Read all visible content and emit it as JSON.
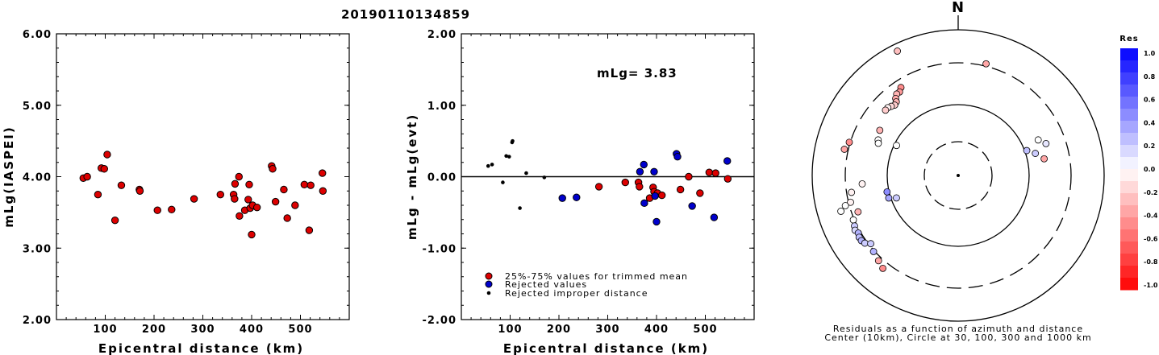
{
  "title": "20190110134859",
  "chart_data": [
    {
      "type": "scatter",
      "xlabel": "Epicentral distance (km)",
      "ylabel": "mLg(IASPEI)",
      "xlim": [
        0,
        600
      ],
      "ylim": [
        2,
        6
      ],
      "xticks": [
        "100",
        "200",
        "300",
        "400",
        "500"
      ],
      "yticks": [
        "2.00",
        "3.00",
        "4.00",
        "5.00",
        "6.00"
      ],
      "points": [
        [
          55,
          3.98
        ],
        [
          63,
          4.0
        ],
        [
          85,
          3.75
        ],
        [
          92,
          4.12
        ],
        [
          98,
          4.11
        ],
        [
          104,
          4.31
        ],
        [
          120,
          3.39
        ],
        [
          133,
          3.88
        ],
        [
          170,
          3.82
        ],
        [
          171,
          3.8
        ],
        [
          207,
          3.53
        ],
        [
          236,
          3.54
        ],
        [
          282,
          3.69
        ],
        [
          336,
          3.75
        ],
        [
          363,
          3.75
        ],
        [
          365,
          3.69
        ],
        [
          366,
          3.9
        ],
        [
          374,
          4.0
        ],
        [
          375,
          3.45
        ],
        [
          386,
          3.53
        ],
        [
          393,
          3.68
        ],
        [
          395,
          3.89
        ],
        [
          397,
          3.56
        ],
        [
          400,
          3.19
        ],
        [
          402,
          3.6
        ],
        [
          411,
          3.57
        ],
        [
          441,
          4.15
        ],
        [
          443,
          4.11
        ],
        [
          449,
          3.65
        ],
        [
          466,
          3.82
        ],
        [
          473,
          3.42
        ],
        [
          489,
          3.6
        ],
        [
          508,
          3.89
        ],
        [
          518,
          3.25
        ],
        [
          521,
          3.88
        ],
        [
          545,
          4.05
        ],
        [
          546,
          3.8
        ]
      ]
    },
    {
      "type": "scatter",
      "xlabel": "Epicentral distance (km)",
      "ylabel": "mLg - mLg(evt)",
      "xlim": [
        0,
        600
      ],
      "ylim": [
        -2,
        2
      ],
      "xticks": [
        "100",
        "200",
        "300",
        "400",
        "500"
      ],
      "yticks": [
        "-2.00",
        "-1.00",
        "0.00",
        "1.00",
        "2.00"
      ],
      "annotation": "mLg= 3.83",
      "legend": [
        "25%-75% values for trimmed mean",
        "Rejected values",
        "Rejected improper distance"
      ],
      "series": [
        {
          "name": "25%-75% values for trimmed mean",
          "color": "#dd0000",
          "points": [
            [
              282,
              -0.14
            ],
            [
              336,
              -0.08
            ],
            [
              363,
              -0.08
            ],
            [
              365,
              -0.14
            ],
            [
              386,
              -0.3
            ],
            [
              393,
              -0.15
            ],
            [
              395,
              -0.21
            ],
            [
              402,
              -0.23
            ],
            [
              411,
              -0.26
            ],
            [
              449,
              -0.18
            ],
            [
              466,
              0.0
            ],
            [
              489,
              -0.23
            ],
            [
              508,
              0.06
            ],
            [
              521,
              0.05
            ],
            [
              546,
              -0.03
            ]
          ]
        },
        {
          "name": "Rejected values",
          "color": "#0000cc",
          "points": [
            [
              207,
              -0.3
            ],
            [
              236,
              -0.29
            ],
            [
              366,
              0.07
            ],
            [
              374,
              0.17
            ],
            [
              375,
              -0.37
            ],
            [
              397,
              -0.27
            ],
            [
              400,
              -0.63
            ],
            [
              441,
              0.32
            ],
            [
              443,
              0.28
            ],
            [
              473,
              -0.41
            ],
            [
              518,
              -0.57
            ],
            [
              545,
              0.22
            ],
            [
              395,
              0.07
            ]
          ]
        },
        {
          "name": "Rejected improper distance",
          "color": "#000000",
          "points": [
            [
              55,
              0.15
            ],
            [
              63,
              0.17
            ],
            [
              85,
              -0.08
            ],
            [
              92,
              0.29
            ],
            [
              98,
              0.28
            ],
            [
              104,
              0.48
            ],
            [
              105,
              0.5
            ],
            [
              120,
              -0.44
            ],
            [
              133,
              0.05
            ],
            [
              170,
              -0.01
            ]
          ]
        }
      ]
    },
    {
      "type": "polar-scatter",
      "north_label": "N",
      "colorbar_title": "Res",
      "colorbar_ticks": [
        "1.0",
        "0.8",
        "0.6",
        "0.4",
        "0.2",
        "0.0",
        "-0.2",
        "-0.4",
        "-0.6",
        "-0.8",
        "-1.0"
      ],
      "caption": [
        "Residuals as a function of azimuth and distance",
        "Center (10km), Circle at 30, 100, 300 and 1000 km"
      ],
      "points": [
        {
          "az": 334,
          "dist": 0.95,
          "res": -0.25
        },
        {
          "az": 14,
          "dist": 0.79,
          "res": -0.35
        },
        {
          "az": 327,
          "dist": 0.72,
          "res": -0.45
        },
        {
          "az": 325,
          "dist": 0.7,
          "res": -0.4
        },
        {
          "az": 323,
          "dist": 0.7,
          "res": -0.3
        },
        {
          "az": 321,
          "dist": 0.68,
          "res": -0.35
        },
        {
          "az": 320,
          "dist": 0.66,
          "res": -0.3
        },
        {
          "az": 318,
          "dist": 0.65,
          "res": -0.2
        },
        {
          "az": 316,
          "dist": 0.66,
          "res": -0.15
        },
        {
          "az": 314,
          "dist": 0.67,
          "res": -0.05
        },
        {
          "az": 312,
          "dist": 0.67,
          "res": -0.2
        },
        {
          "az": 287,
          "dist": 0.78,
          "res": -0.45
        },
        {
          "az": 283,
          "dist": 0.8,
          "res": -0.35
        },
        {
          "az": 300,
          "dist": 0.62,
          "res": -0.3
        },
        {
          "az": 294,
          "dist": 0.6,
          "res": 0.0
        },
        {
          "az": 292,
          "dist": 0.59,
          "res": 0.0
        },
        {
          "az": 296,
          "dist": 0.47,
          "res": 0.0
        },
        {
          "az": 70,
          "dist": 0.64,
          "res": 0.1
        },
        {
          "az": 70,
          "dist": 0.5,
          "res": 0.25
        },
        {
          "az": 74,
          "dist": 0.55,
          "res": 0.2
        },
        {
          "az": 66,
          "dist": 0.6,
          "res": 0.0
        },
        {
          "az": 79,
          "dist": 0.6,
          "res": -0.35
        },
        {
          "az": 265,
          "dist": 0.66,
          "res": -0.05
        },
        {
          "az": 261,
          "dist": 0.74,
          "res": -0.05
        },
        {
          "az": 256,
          "dist": 0.76,
          "res": -0.05
        },
        {
          "az": 255,
          "dist": 0.8,
          "res": 0.0
        },
        {
          "az": 253,
          "dist": 0.84,
          "res": 0.0
        },
        {
          "az": 250,
          "dist": 0.73,
          "res": -0.3
        },
        {
          "az": 247,
          "dist": 0.78,
          "res": 0.0
        },
        {
          "az": 244,
          "dist": 0.79,
          "res": 0.2
        },
        {
          "az": 242,
          "dist": 0.8,
          "res": 0.15
        },
        {
          "az": 240,
          "dist": 0.79,
          "res": 0.3
        },
        {
          "az": 238,
          "dist": 0.8,
          "res": 0.25
        },
        {
          "az": 236,
          "dist": 0.8,
          "res": 0.3
        },
        {
          "az": 234,
          "dist": 0.79,
          "res": 0.2
        },
        {
          "az": 232,
          "dist": 0.76,
          "res": 0.2
        },
        {
          "az": 228,
          "dist": 0.78,
          "res": 0.3
        },
        {
          "az": 223,
          "dist": 0.8,
          "res": -0.35
        },
        {
          "az": 219,
          "dist": 0.82,
          "res": -0.45
        },
        {
          "az": 257,
          "dist": 0.5,
          "res": 0.45
        },
        {
          "az": 252,
          "dist": 0.5,
          "res": 0.35
        },
        {
          "az": 250,
          "dist": 0.45,
          "res": 0.2
        }
      ]
    }
  ]
}
